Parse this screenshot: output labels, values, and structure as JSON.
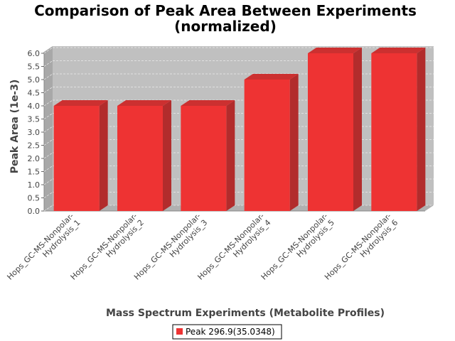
{
  "chart_data": {
    "type": "bar",
    "title_lines": [
      "Comparison of Peak Area Between Experiments",
      "(normalized)"
    ],
    "xlabel": "Mass Spectrum Experiments (Metabolite Profiles)",
    "ylabel": "Peak Area (1e-3)",
    "categories": [
      [
        "Hops_GC-MS-Nonpolar-",
        "Hydrolysis_1"
      ],
      [
        "Hops_GC-MS-Nonpolar-",
        "Hydrolysis_2"
      ],
      [
        "Hops_GC-MS-Nonpolar-",
        "Hydrolysis_3"
      ],
      [
        "Hops_GC-MS-Nonpolar-",
        "Hydrolysis_4"
      ],
      [
        "Hops_GC-MS-Nonpolar-",
        "Hydrolysis_5"
      ],
      [
        "Hops_GC-MS-Nonpolar-",
        "Hydrolysis_6"
      ]
    ],
    "series": [
      {
        "name": "Peak 296.9(35.0348)",
        "values": [
          4.0,
          4.0,
          4.0,
          5.0,
          6.0,
          6.0
        ],
        "color": "#ee3333"
      }
    ],
    "ylim": [
      0,
      6.0
    ],
    "yticks": [
      "0.0",
      "0.5",
      "1.0",
      "1.5",
      "2.0",
      "2.5",
      "3.0",
      "3.5",
      "4.0",
      "4.5",
      "5.0",
      "5.5",
      "6.0"
    ],
    "grid": true,
    "legend_position": "bottom",
    "plot_background": "#c0c0c0",
    "wall_color": "#a8a8a8"
  }
}
